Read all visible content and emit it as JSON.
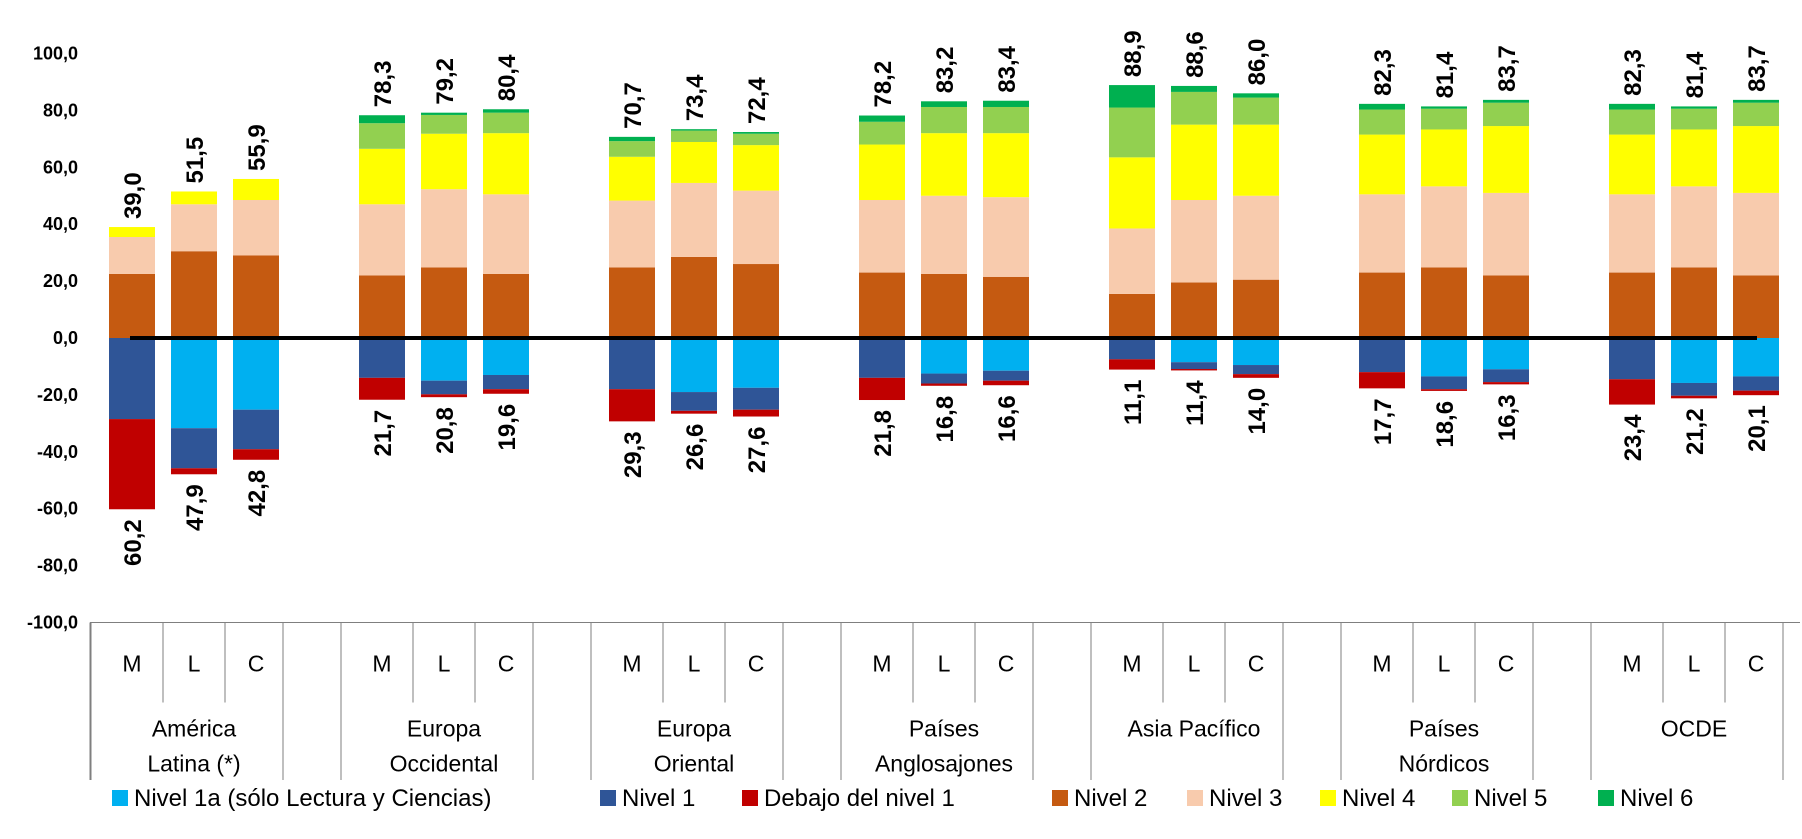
{
  "chart_data": {
    "type": "bar",
    "stacked": true,
    "diverging": true,
    "ylim": [
      -100,
      100
    ],
    "yticks": [
      100,
      80,
      60,
      40,
      20,
      0,
      -20,
      -40,
      -60,
      -80,
      -100
    ],
    "ytick_labels": [
      "100,0",
      "80,0",
      "60,0",
      "40,0",
      "20,0",
      "0,0",
      "-20,0",
      "-40,0",
      "-60,0",
      "-80,0",
      "-100,0"
    ],
    "zero_line": true,
    "grid": false,
    "legend_position": "bottom",
    "subcategories": [
      "M",
      "L",
      "C"
    ],
    "groups": [
      {
        "label": [
          "América",
          "Latina (*)"
        ],
        "bars": [
          {
            "sub": "M",
            "above": [
              22.5,
              13.0,
              3.5,
              0,
              0
            ],
            "below": [
              0,
              28.5,
              31.7
            ],
            "above_label": "39,0",
            "below_label": "60,2"
          },
          {
            "sub": "L",
            "above": [
              30.5,
              16.5,
              4.5,
              0,
              0
            ],
            "below": [
              31.7,
              14.1,
              2.1
            ],
            "above_label": "51,5",
            "below_label": "47,9"
          },
          {
            "sub": "C",
            "above": [
              29.0,
              19.5,
              7.4,
              0,
              0
            ],
            "below": [
              25.2,
              13.9,
              3.7
            ],
            "above_label": "55,9",
            "below_label": "42,8"
          }
        ]
      },
      {
        "label": [
          "Europa",
          "Occidental"
        ],
        "bars": [
          {
            "sub": "M",
            "above": [
              22.0,
              25.0,
              19.5,
              9.0,
              2.8
            ],
            "below": [
              0,
              14.0,
              7.7
            ],
            "above_label": "78,3",
            "below_label": "21,7"
          },
          {
            "sub": "L",
            "above": [
              24.8,
              27.5,
              19.5,
              6.6,
              0.8
            ],
            "below": [
              15.0,
              4.8,
              1.0
            ],
            "above_label": "79,2",
            "below_label": "20,8"
          },
          {
            "sub": "C",
            "above": [
              22.5,
              28.0,
              21.5,
              7.2,
              1.2
            ],
            "below": [
              13.0,
              5.0,
              1.6
            ],
            "above_label": "80,4",
            "below_label": "19,6"
          }
        ]
      },
      {
        "label": [
          "Europa",
          "Oriental"
        ],
        "bars": [
          {
            "sub": "M",
            "above": [
              24.8,
              23.5,
              15.4,
              5.5,
              1.5
            ],
            "below": [
              0,
              18.0,
              11.3
            ],
            "above_label": "70,7",
            "below_label": "29,3"
          },
          {
            "sub": "L",
            "above": [
              28.5,
              26.0,
              14.4,
              4.0,
              0.5
            ],
            "below": [
              19.0,
              6.6,
              1.0
            ],
            "above_label": "73,4",
            "below_label": "26,6"
          },
          {
            "sub": "C",
            "above": [
              26.0,
              25.8,
              16.0,
              4.0,
              0.6
            ],
            "below": [
              17.5,
              7.7,
              2.4
            ],
            "above_label": "72,4",
            "below_label": "27,6"
          }
        ]
      },
      {
        "label": [
          "Países",
          "Anglosajones"
        ],
        "bars": [
          {
            "sub": "M",
            "above": [
              23.0,
              25.5,
              19.5,
              8.0,
              2.2
            ],
            "below": [
              0,
              14.0,
              7.8
            ],
            "above_label": "78,2",
            "below_label": "21,8"
          },
          {
            "sub": "L",
            "above": [
              22.5,
              27.5,
              22.0,
              9.2,
              2.0
            ],
            "below": [
              12.5,
              3.5,
              0.8
            ],
            "above_label": "83,2",
            "below_label": "16,8"
          },
          {
            "sub": "C",
            "above": [
              21.5,
              28.0,
              22.5,
              9.2,
              2.2
            ],
            "below": [
              11.5,
              3.5,
              1.6
            ],
            "above_label": "83,4",
            "below_label": "16,6"
          }
        ]
      },
      {
        "label": [
          "Asia Pacífico"
        ],
        "bars": [
          {
            "sub": "M",
            "above": [
              15.5,
              23.0,
              25.0,
              17.5,
              7.9
            ],
            "below": [
              0,
              7.5,
              3.6
            ],
            "above_label": "88,9",
            "below_label": "11,1"
          },
          {
            "sub": "L",
            "above": [
              19.5,
              29.0,
              26.5,
              11.5,
              2.1
            ],
            "below": [
              8.5,
              2.4,
              0.5
            ],
            "above_label": "88,6",
            "below_label": "11,4"
          },
          {
            "sub": "C",
            "above": [
              20.5,
              29.5,
              25.0,
              9.5,
              1.5
            ],
            "below": [
              9.5,
              3.2,
              1.3
            ],
            "above_label": "86,0",
            "below_label": "14,0"
          }
        ]
      },
      {
        "label": [
          "Países",
          "Nórdicos"
        ],
        "bars": [
          {
            "sub": "M",
            "above": [
              23.0,
              27.5,
              21.0,
              8.8,
              2.0
            ],
            "below": [
              0,
              12.0,
              5.7
            ],
            "above_label": "82,3",
            "below_label": "17,7"
          },
          {
            "sub": "L",
            "above": [
              24.8,
              28.5,
              20.0,
              7.3,
              0.8
            ],
            "below": [
              13.5,
              4.5,
              0.6
            ],
            "above_label": "81,4",
            "below_label": "18,6"
          },
          {
            "sub": "C",
            "above": [
              22.0,
              29.0,
              23.5,
              8.2,
              1.0
            ],
            "below": [
              11.0,
              4.5,
              0.8
            ],
            "above_label": "83,7",
            "below_label": "16,3"
          }
        ]
      },
      {
        "label": [
          "OCDE"
        ],
        "bars": [
          {
            "sub": "M",
            "above": [
              23.0,
              27.5,
              21.0,
              8.8,
              2.0
            ],
            "below": [
              0,
              14.5,
              8.9
            ],
            "above_label": "82,3",
            "below_label": "23,4"
          },
          {
            "sub": "L",
            "above": [
              24.8,
              28.5,
              20.0,
              7.3,
              0.8
            ],
            "below": [
              15.8,
              4.5,
              0.9
            ],
            "above_label": "81,4",
            "below_label": "21,2"
          },
          {
            "sub": "C",
            "above": [
              22.0,
              29.0,
              23.5,
              8.2,
              1.0
            ],
            "below": [
              13.5,
              5.0,
              1.6
            ],
            "above_label": "83,7",
            "below_label": "20,1"
          }
        ]
      }
    ],
    "series": [
      {
        "key": "n1a",
        "name": "Nivel 1a (sólo Lectura y Ciencias)",
        "color": "#00B0F0",
        "side": "below"
      },
      {
        "key": "n1",
        "name": "Nivel 1",
        "color": "#2F5597",
        "side": "below"
      },
      {
        "key": "dn1",
        "name": "Debajo del nivel 1",
        "color": "#C00000",
        "side": "below"
      },
      {
        "key": "n2",
        "name": "Nivel 2",
        "color": "#C55A11",
        "side": "above"
      },
      {
        "key": "n3",
        "name": "Nivel 3",
        "color": "#F8CBAD",
        "side": "above"
      },
      {
        "key": "n4",
        "name": "Nivel 4",
        "color": "#FFFF00",
        "side": "above"
      },
      {
        "key": "n5",
        "name": "Nivel 5",
        "color": "#92D050",
        "side": "above"
      },
      {
        "key": "n6",
        "name": "Nivel 6",
        "color": "#00B050",
        "side": "above"
      }
    ]
  }
}
